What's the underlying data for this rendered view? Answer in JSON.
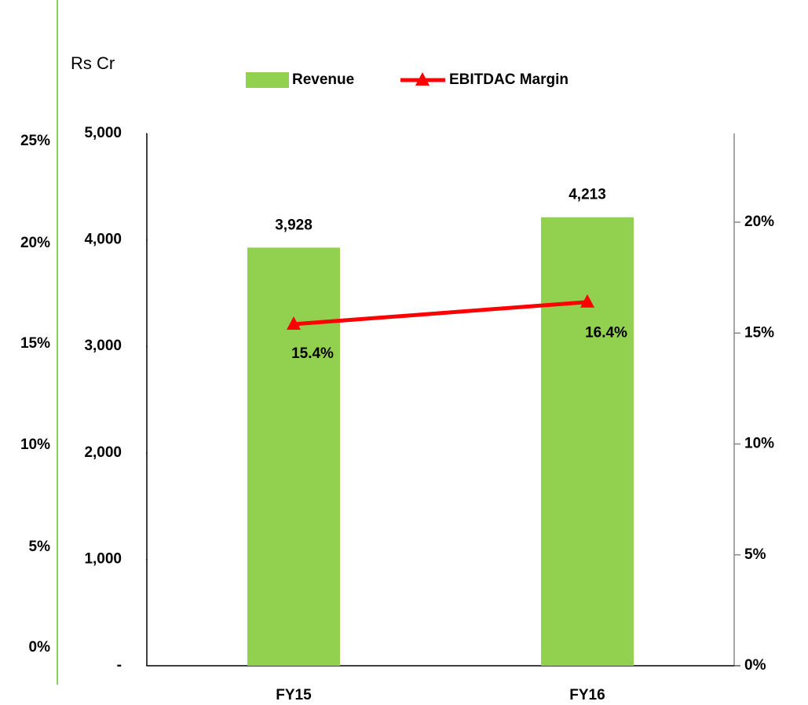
{
  "chart_data": {
    "type": "bar_line",
    "unit_label": "Rs Cr",
    "outer_axis_labels": [
      "25%",
      "20%",
      "15%",
      "10%",
      "5%",
      "0%"
    ],
    "categories": [
      "FY15",
      "FY16"
    ],
    "series": [
      {
        "name": "Revenue",
        "type": "bar",
        "color": "#92d050",
        "values": [
          3928,
          4213
        ],
        "value_labels": [
          "3,928",
          "4,213"
        ]
      },
      {
        "name": "EBITDAC Margin",
        "type": "line",
        "axis": "y2",
        "color": "#ff0000",
        "values": [
          15.4,
          16.4
        ],
        "value_labels": [
          "15.4%",
          "16.4%"
        ]
      }
    ],
    "ylim": [
      0,
      5000
    ],
    "yticks": [
      {
        "value": 0,
        "label": "-"
      },
      {
        "value": 1000,
        "label": "1,000"
      },
      {
        "value": 2000,
        "label": "2,000"
      },
      {
        "value": 3000,
        "label": "3,000"
      },
      {
        "value": 4000,
        "label": "4,000"
      },
      {
        "value": 5000,
        "label": "5,000"
      }
    ],
    "y2lim": [
      0,
      24
    ],
    "y2ticks": [
      {
        "value": 0,
        "label": "0%"
      },
      {
        "value": 5,
        "label": "5%"
      },
      {
        "value": 10,
        "label": "10%"
      },
      {
        "value": 15,
        "label": "15%"
      },
      {
        "value": 20,
        "label": "20%"
      }
    ],
    "legend": "top"
  }
}
